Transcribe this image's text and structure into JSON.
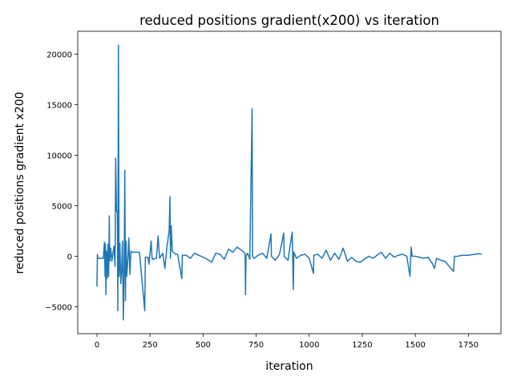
{
  "chart_data": {
    "type": "line",
    "title": "reduced positions gradient(x200) vs iteration",
    "xlabel": "iteration",
    "ylabel": "reduced positions gradient x200",
    "color": "#1f77b4",
    "x": [
      0,
      2,
      5,
      30,
      35,
      38,
      40,
      42,
      45,
      48,
      52,
      55,
      58,
      60,
      65,
      70,
      80,
      85,
      88,
      92,
      96,
      98,
      101,
      104,
      108,
      112,
      116,
      120,
      124,
      128,
      131,
      134,
      137,
      140,
      145,
      150,
      155,
      160,
      165,
      200,
      225,
      228,
      240,
      245,
      255,
      260,
      280,
      288,
      295,
      310,
      320,
      330,
      340,
      344,
      346,
      350,
      355,
      370,
      380,
      400,
      402,
      420,
      440,
      460,
      480,
      500,
      520,
      540,
      560,
      580,
      600,
      620,
      640,
      660,
      680,
      698,
      700,
      702,
      710,
      720,
      731,
      733,
      740,
      760,
      780,
      800,
      820,
      822,
      840,
      860,
      880,
      882,
      900,
      920,
      925,
      928,
      940,
      960,
      980,
      1000,
      1020,
      1022,
      1040,
      1060,
      1080,
      1100,
      1120,
      1140,
      1160,
      1180,
      1200,
      1220,
      1240,
      1260,
      1280,
      1300,
      1320,
      1340,
      1360,
      1380,
      1400,
      1420,
      1440,
      1460,
      1475,
      1480,
      1485,
      1500,
      1520,
      1540,
      1560,
      1580,
      1590,
      1600,
      1620,
      1640,
      1660,
      1680,
      1685,
      1700,
      1720,
      1750,
      1780,
      1800,
      1813
    ],
    "values": [
      -3000,
      200,
      -200,
      -200,
      1400,
      -2000,
      1200,
      -3800,
      500,
      -2200,
      1200,
      -2000,
      4000,
      -500,
      800,
      -500,
      1000,
      -1000,
      9700,
      4500,
      4300,
      -5400,
      20900,
      -2000,
      1300,
      -2700,
      -1500,
      1500,
      -6300,
      -1000,
      8500,
      -4400,
      1500,
      -2000,
      -500,
      1800,
      -1800,
      500,
      400,
      400,
      -5400,
      -100,
      -100,
      -800,
      1500,
      -300,
      -200,
      2000,
      -200,
      300,
      -1200,
      1000,
      2500,
      5900,
      -200,
      3000,
      500,
      200,
      200,
      -2200,
      100,
      100,
      -200,
      300,
      100,
      -100,
      -300,
      -600,
      300,
      200,
      -300,
      700,
      400,
      900,
      600,
      300,
      -3800,
      0,
      300,
      -300,
      14600,
      0,
      -200,
      100,
      300,
      -200,
      2200,
      0,
      -400,
      200,
      2300,
      0,
      -400,
      2400,
      -3300,
      400,
      -200,
      100,
      200,
      -200,
      -1700,
      100,
      200,
      -200,
      600,
      -400,
      300,
      -300,
      800,
      -500,
      -100,
      -500,
      -600,
      -300,
      0,
      -200,
      100,
      400,
      -200,
      300,
      -100,
      100,
      200,
      0,
      -2000,
      900,
      0,
      0,
      -100,
      -200,
      -100,
      -700,
      -1200,
      -200,
      -400,
      -500,
      -1000,
      -1500,
      0,
      0,
      100,
      100,
      200,
      250,
      200
    ],
    "xlim": [
      -90.65,
      1903.65
    ],
    "ylim": [
      -7660,
      22260
    ],
    "xticks": [
      0,
      250,
      500,
      750,
      1000,
      1250,
      1500,
      1750
    ],
    "yticks": [
      {
        "value": -5000,
        "label": "−5000"
      },
      0,
      5000,
      10000,
      15000,
      20000
    ]
  }
}
